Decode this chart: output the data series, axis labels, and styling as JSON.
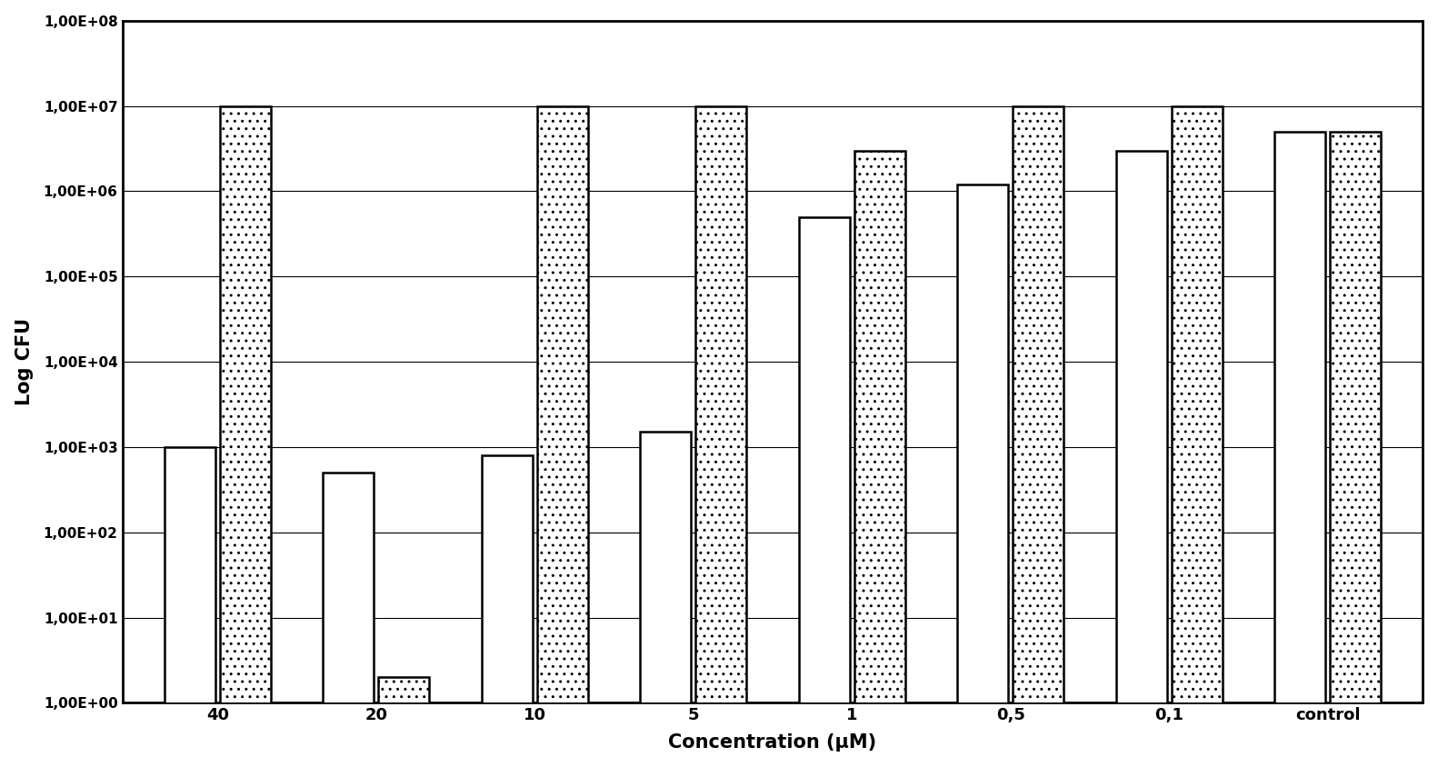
{
  "categories": [
    "40",
    "20",
    "10",
    "5",
    "1",
    "0,5",
    "0,1",
    "control"
  ],
  "bar1_values": [
    1000,
    500,
    800,
    1500,
    500000,
    1200000,
    3000000,
    5000000
  ],
  "bar2_values": [
    10000000,
    2,
    10000000,
    10000000,
    3000000,
    10000000,
    10000000,
    5000000
  ],
  "ylabel": "Log CFU",
  "xlabel": "Concentration (μM)",
  "ylim_min": 1.0,
  "ylim_max": 100000000.0,
  "background_color": "#ffffff",
  "bar1_color": "#ffffff",
  "bar1_edgecolor": "#000000",
  "bar2_edgecolor": "#000000",
  "bar_width": 0.32,
  "bar_gap": 0.03,
  "axis_fontsize": 15,
  "tick_fontsize": 11,
  "xtick_fontsize": 13
}
